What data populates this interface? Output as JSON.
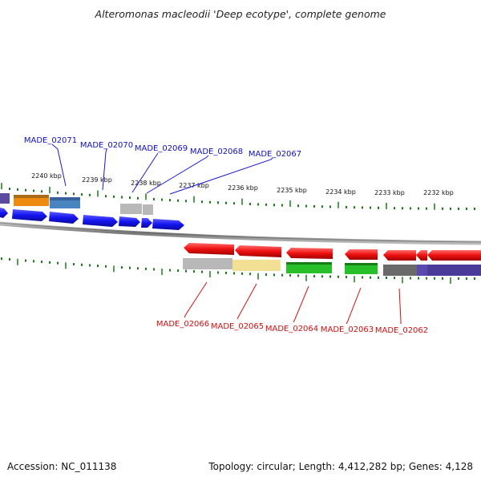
{
  "title": "Alteromonas macleodii 'Deep ecotype', complete genome",
  "accession_label": "Accession: NC_011138",
  "topology_label": "Topology: circular; Length: 4,412,282 bp; Genes: 4,128",
  "colors": {
    "forward_label": "#1010c0",
    "reverse_label": "#d01010",
    "tick": "#1a7a1a",
    "backbone": "#8a8a8a",
    "forward_gene": "#1818f0",
    "reverse_gene": "#ee1010"
  },
  "scale_labels": [
    "2240 kbp",
    "2239 kbp",
    "2238 kbp",
    "2237 kbp",
    "2236 kbp",
    "2235 kbp",
    "2234 kbp",
    "2233 kbp",
    "2232 kbp"
  ],
  "forward_genes": [
    {
      "label": "MADE_02071"
    },
    {
      "label": "MADE_02070"
    },
    {
      "label": "MADE_02069"
    },
    {
      "label": "MADE_02068"
    },
    {
      "label": "MADE_02067"
    }
  ],
  "reverse_genes": [
    {
      "label": "MADE_02066"
    },
    {
      "label": "MADE_02065"
    },
    {
      "label": "MADE_02064"
    },
    {
      "label": "MADE_02063"
    },
    {
      "label": "MADE_02062"
    }
  ]
}
